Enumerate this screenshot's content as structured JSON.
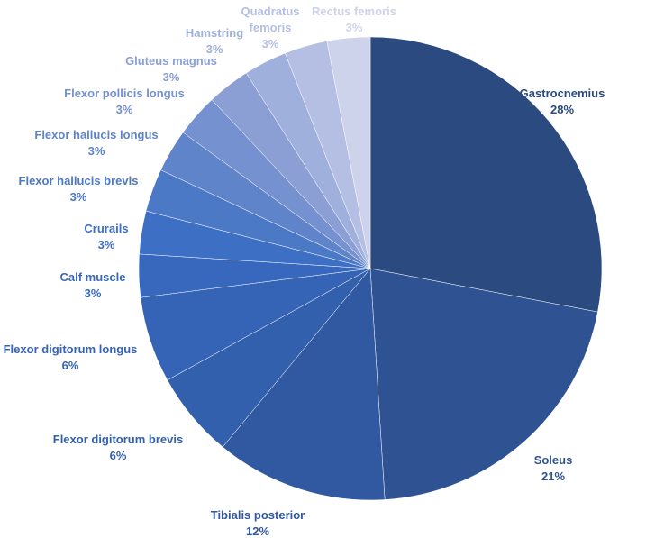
{
  "chart_data": {
    "type": "pie",
    "title": "",
    "start_angle_deg": 0,
    "direction": "clockwise",
    "slices": [
      {
        "label_lines": [
          "Gastrocnemius"
        ],
        "pct_label": "28%",
        "value": 28,
        "color": "#2b4a80",
        "label_color": "#2b4a80"
      },
      {
        "label_lines": [
          "Soleus"
        ],
        "pct_label": "21%",
        "value": 21,
        "color": "#2f5293",
        "label_color": "#2f5293"
      },
      {
        "label_lines": [
          "Tibialis posterior"
        ],
        "pct_label": "12%",
        "value": 12,
        "color": "#3159a1",
        "label_color": "#3159a1"
      },
      {
        "label_lines": [
          "Flexor digitorum brevis"
        ],
        "pct_label": "6%",
        "value": 6,
        "color": "#3360ad",
        "label_color": "#3360ad"
      },
      {
        "label_lines": [
          "Flexor digitorum longus"
        ],
        "pct_label": "6%",
        "value": 6,
        "color": "#3563b5",
        "label_color": "#3563b5"
      },
      {
        "label_lines": [
          "Calf muscle"
        ],
        "pct_label": "3%",
        "value": 3,
        "color": "#3768bd",
        "label_color": "#3768bd"
      },
      {
        "label_lines": [
          "Crurails"
        ],
        "pct_label": "3%",
        "value": 3,
        "color": "#3d6fc4",
        "label_color": "#3d6fc4"
      },
      {
        "label_lines": [
          "Flexor hallucis brevis"
        ],
        "pct_label": "3%",
        "value": 3,
        "color": "#4c79c6",
        "label_color": "#4c79c6"
      },
      {
        "label_lines": [
          "Flexor hallucis longus"
        ],
        "pct_label": "3%",
        "value": 3,
        "color": "#6084c9",
        "label_color": "#6084c9"
      },
      {
        "label_lines": [
          "Flexor pollicis longus"
        ],
        "pct_label": "3%",
        "value": 3,
        "color": "#7691cf",
        "label_color": "#7691cf"
      },
      {
        "label_lines": [
          "Gluteus magnus"
        ],
        "pct_label": "3%",
        "value": 3,
        "color": "#8b9fd5",
        "label_color": "#8b9fd5"
      },
      {
        "label_lines": [
          "Hamstring"
        ],
        "pct_label": "3%",
        "value": 3,
        "color": "#a0b0dc",
        "label_color": "#a0b0dc"
      },
      {
        "label_lines": [
          "Quadratus",
          "femoris"
        ],
        "pct_label": "3%",
        "value": 3,
        "color": "#b4bfe3",
        "label_color": "#b4bfe3"
      },
      {
        "label_lines": [
          "Rectus femoris"
        ],
        "pct_label": "3%",
        "value": 3,
        "color": "#cdd3eb",
        "label_color": "#cdd3eb"
      }
    ]
  }
}
